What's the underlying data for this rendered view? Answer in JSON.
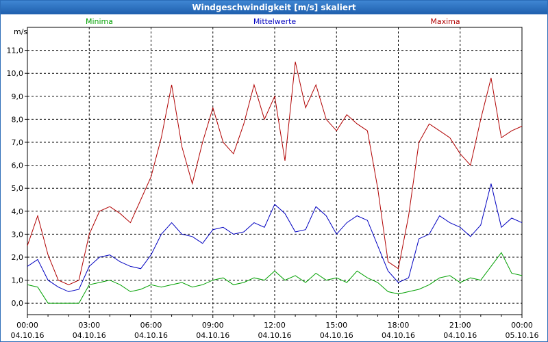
{
  "window": {
    "title": "Windgeschwindigkeit [m/s] skaliert"
  },
  "chart_data": {
    "type": "line",
    "title": "Windgeschwindigkeit [m/s] skaliert",
    "ylabel": "m/s",
    "xlabel": "",
    "ylim": [
      -0.5,
      12.0
    ],
    "xlim": [
      0,
      24
    ],
    "grid": true,
    "legend_placement": "top",
    "y_ticks": [
      "0,0",
      "1,0",
      "2,0",
      "3,0",
      "4,0",
      "5,0",
      "6,0",
      "7,0",
      "8,0",
      "9,0",
      "10,0",
      "11,0"
    ],
    "y_tick_values": [
      0,
      1,
      2,
      3,
      4,
      5,
      6,
      7,
      8,
      9,
      10,
      11
    ],
    "x_ticks": [
      {
        "time": "00:00",
        "date": "04.10.16"
      },
      {
        "time": "03:00",
        "date": "04.10.16"
      },
      {
        "time": "06:00",
        "date": "04.10.16"
      },
      {
        "time": "09:00",
        "date": "04.10.16"
      },
      {
        "time": "12:00",
        "date": "04.10.16"
      },
      {
        "time": "15:00",
        "date": "04.10.16"
      },
      {
        "time": "18:00",
        "date": "04.10.16"
      },
      {
        "time": "21:00",
        "date": "04.10.16"
      },
      {
        "time": "00:00",
        "date": "05.10.16"
      }
    ],
    "x_tick_values": [
      0,
      3,
      6,
      9,
      12,
      15,
      18,
      21,
      24
    ],
    "x": [
      0,
      0.5,
      1,
      1.5,
      2,
      2.5,
      3,
      3.5,
      4,
      4.5,
      5,
      5.5,
      6,
      6.5,
      7,
      7.5,
      8,
      8.5,
      9,
      9.5,
      10,
      10.5,
      11,
      11.5,
      12,
      12.5,
      13,
      13.5,
      14,
      14.5,
      15,
      15.5,
      16,
      16.5,
      17,
      17.5,
      18,
      18.5,
      19,
      19.5,
      20,
      20.5,
      21,
      21.5,
      22,
      22.5,
      23,
      23.5,
      24
    ],
    "series": [
      {
        "name": "Minima",
        "color": "#00a000",
        "values": [
          0.8,
          0.7,
          0.0,
          0.0,
          0.0,
          0.0,
          0.8,
          0.9,
          1.0,
          0.8,
          0.5,
          0.6,
          0.8,
          0.7,
          0.8,
          0.9,
          0.7,
          0.8,
          1.0,
          1.1,
          0.8,
          0.9,
          1.1,
          1.0,
          1.4,
          1.0,
          1.2,
          0.9,
          1.3,
          1.0,
          1.1,
          0.9,
          1.4,
          1.1,
          0.9,
          0.5,
          0.4,
          0.5,
          0.6,
          0.8,
          1.1,
          1.2,
          0.9,
          1.1,
          1.0,
          1.6,
          2.2,
          1.3,
          1.2
        ]
      },
      {
        "name": "Mittelwerte",
        "color": "#0000c0",
        "values": [
          1.6,
          1.9,
          1.0,
          0.7,
          0.5,
          0.6,
          1.6,
          2.0,
          2.1,
          1.8,
          1.6,
          1.5,
          2.1,
          3.0,
          3.5,
          3.0,
          2.9,
          2.6,
          3.2,
          3.3,
          3.0,
          3.1,
          3.5,
          3.3,
          4.3,
          3.9,
          3.1,
          3.2,
          4.2,
          3.8,
          3.0,
          3.5,
          3.8,
          3.6,
          2.5,
          1.4,
          0.9,
          1.1,
          2.8,
          3.0,
          3.8,
          3.5,
          3.3,
          2.9,
          3.4,
          5.2,
          3.3,
          3.7,
          3.5
        ]
      },
      {
        "name": "Maxima",
        "color": "#b00000",
        "values": [
          2.5,
          3.8,
          2.1,
          1.0,
          0.8,
          1.0,
          3.0,
          4.0,
          4.2,
          3.9,
          3.5,
          4.5,
          5.5,
          7.2,
          9.5,
          6.8,
          5.2,
          7.0,
          8.5,
          7.0,
          6.5,
          7.8,
          9.5,
          8.0,
          9.0,
          6.2,
          10.5,
          8.5,
          9.5,
          8.0,
          7.5,
          8.2,
          7.8,
          7.5,
          5.0,
          1.8,
          1.5,
          3.8,
          7.0,
          7.8,
          7.5,
          7.2,
          6.5,
          6.0,
          8.0,
          9.8,
          7.2,
          7.5,
          7.7
        ]
      }
    ]
  }
}
